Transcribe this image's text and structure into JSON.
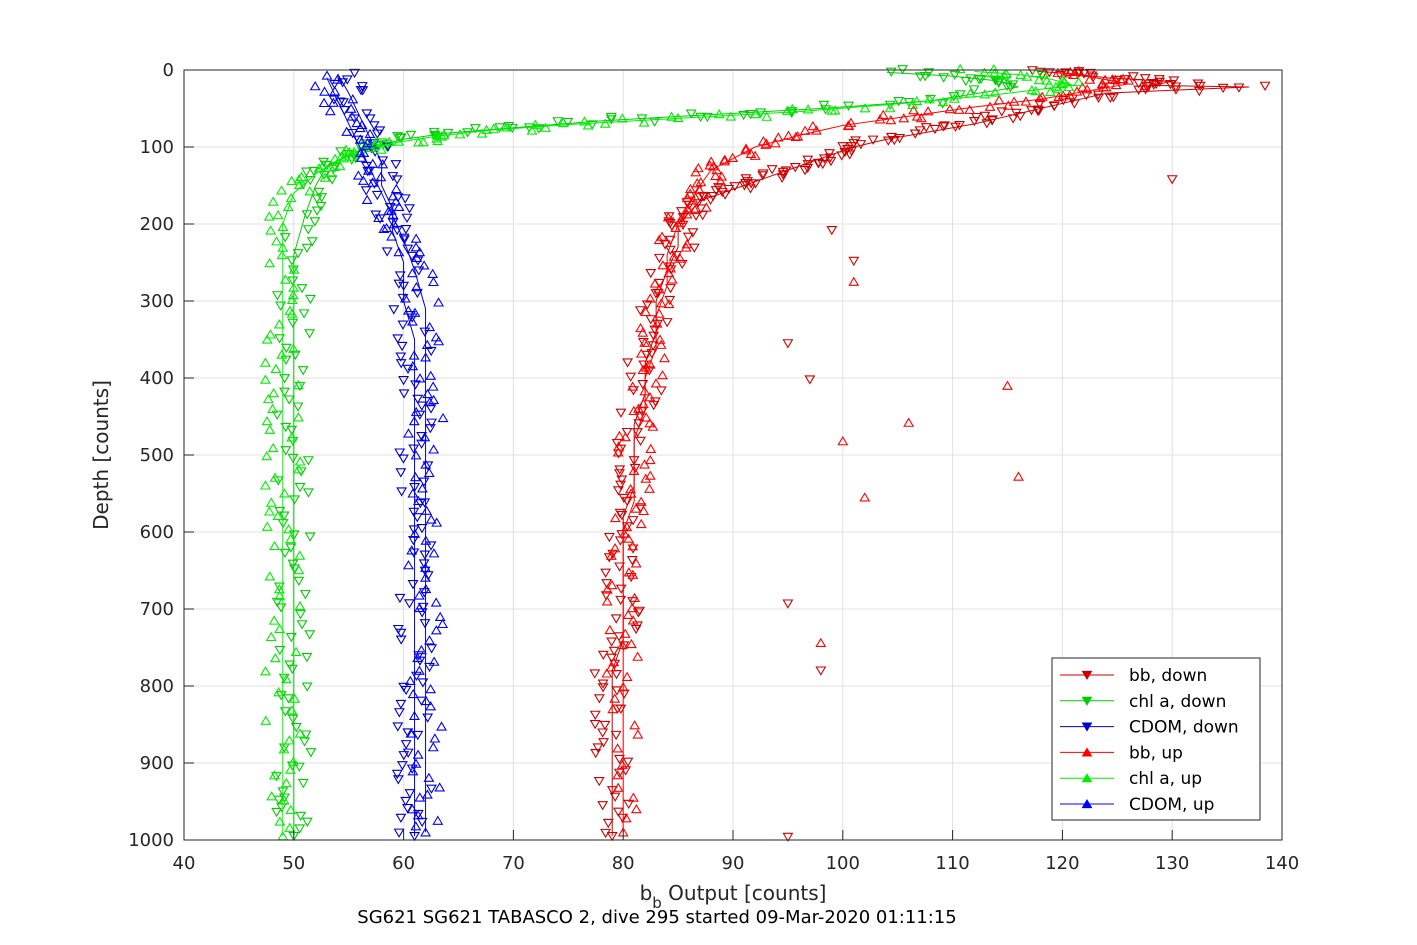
{
  "chart_data": {
    "type": "scatter",
    "xlabel_base": "b",
    "xlabel_sub": "b",
    "xlabel_rest": " Output [counts]",
    "ylabel": "Depth [counts]",
    "subtitle": "SG621 SG621 TABASCO 2, dive 295 started 09-Mar-2020 01:11:15",
    "xlim": [
      40,
      140
    ],
    "ylim": [
      0,
      1000
    ],
    "y_reversed": true,
    "grid": true,
    "legend_position": "bottom-right",
    "xticks": [
      "40",
      "50",
      "60",
      "70",
      "80",
      "90",
      "100",
      "110",
      "120",
      "130",
      "140"
    ],
    "yticks": [
      "0",
      "100",
      "200",
      "300",
      "400",
      "500",
      "600",
      "700",
      "800",
      "900",
      "1000"
    ],
    "series": [
      {
        "name": "bb, down",
        "color": "#cc0000",
        "marker": "down",
        "x": [
          118,
          121,
          124,
          130,
          128,
          137,
          124,
          121,
          118,
          115,
          112,
          108,
          104,
          101,
          99,
          97,
          95,
          93,
          91,
          89,
          87,
          86,
          85,
          85,
          84,
          83,
          83,
          82,
          82,
          81,
          81,
          81,
          80,
          80,
          80,
          80,
          80,
          79,
          79,
          79,
          79,
          79,
          79
        ],
        "y": [
          2,
          5,
          10,
          15,
          20,
          22,
          30,
          40,
          50,
          60,
          70,
          80,
          90,
          100,
          110,
          120,
          130,
          140,
          150,
          160,
          170,
          185,
          200,
          230,
          260,
          300,
          340,
          380,
          420,
          460,
          500,
          540,
          580,
          620,
          660,
          700,
          740,
          780,
          820,
          860,
          900,
          950,
          995
        ],
        "outliers_x": [
          130,
          99,
          101,
          95,
          97,
          95,
          98,
          95
        ],
        "outliers_y": [
          142,
          208,
          248,
          355,
          402,
          693,
          780,
          996
        ]
      },
      {
        "name": "chl a, down",
        "color": "#00cc00",
        "marker": "down",
        "x": [
          104,
          110,
          114,
          116,
          108,
          98,
          88,
          78,
          70,
          64,
          60,
          57,
          55,
          53,
          52,
          51,
          50,
          50,
          50,
          50,
          50,
          50,
          50,
          50,
          50,
          50,
          50,
          50,
          50,
          50
        ],
        "y": [
          3,
          8,
          14,
          22,
          40,
          50,
          58,
          66,
          75,
          82,
          90,
          100,
          110,
          125,
          150,
          190,
          240,
          300,
          360,
          420,
          480,
          540,
          600,
          660,
          720,
          780,
          840,
          900,
          950,
          995
        ]
      },
      {
        "name": "CDOM, down",
        "color": "#0000cc",
        "marker": "down",
        "x": [
          54,
          55,
          56,
          57,
          58,
          58,
          59,
          59,
          60,
          60,
          61,
          61,
          61,
          61,
          61,
          61,
          61,
          61,
          61,
          61,
          61,
          61,
          61,
          61
        ],
        "y": [
          5,
          30,
          60,
          90,
          120,
          150,
          180,
          210,
          250,
          300,
          350,
          400,
          450,
          500,
          550,
          600,
          650,
          700,
          750,
          800,
          850,
          900,
          950,
          995
        ]
      },
      {
        "name": "bb, up",
        "color": "#ff0000",
        "marker": "up",
        "x": [
          120,
          123,
          126,
          122,
          118,
          112,
          106,
          100,
          96,
          92,
          90,
          88,
          87,
          86,
          85,
          84,
          84,
          83,
          83,
          82,
          82,
          81,
          81,
          81,
          80,
          80,
          80,
          80,
          80,
          80,
          80
        ],
        "y": [
          4,
          10,
          18,
          28,
          38,
          48,
          60,
          72,
          85,
          100,
          115,
          130,
          150,
          175,
          200,
          240,
          280,
          320,
          360,
          400,
          440,
          480,
          520,
          560,
          600,
          650,
          700,
          750,
          800,
          900,
          990
        ],
        "outliers_x": [
          115,
          106,
          100,
          102,
          116,
          98,
          101
        ],
        "outliers_y": [
          410,
          458,
          482,
          555,
          528,
          744,
          275
        ]
      },
      {
        "name": "chl a, up",
        "color": "#00ee00",
        "marker": "up",
        "x": [
          112,
          116,
          119,
          121,
          114,
          105,
          96,
          86,
          76,
          68,
          63,
          59,
          56,
          54,
          52,
          50,
          49,
          49,
          49,
          49,
          49,
          49,
          49,
          49,
          49,
          49,
          49,
          49,
          49
        ],
        "y": [
          2,
          6,
          12,
          20,
          32,
          44,
          54,
          62,
          70,
          78,
          86,
          95,
          105,
          118,
          135,
          160,
          200,
          260,
          320,
          380,
          440,
          500,
          560,
          620,
          700,
          780,
          860,
          930,
          995
        ]
      },
      {
        "name": "CDOM, up",
        "color": "#0000ff",
        "marker": "up",
        "x": [
          53,
          54,
          55,
          56,
          57,
          58,
          59,
          60,
          61,
          62,
          62,
          62,
          62,
          62,
          62,
          62,
          62,
          62,
          62,
          62,
          62,
          62
        ],
        "y": [
          10,
          40,
          70,
          100,
          130,
          160,
          190,
          220,
          260,
          310,
          360,
          410,
          460,
          520,
          580,
          640,
          700,
          760,
          820,
          880,
          940,
          990
        ]
      }
    ],
    "legend_labels": [
      "bb, down",
      "chl a, down",
      "CDOM, down",
      "bb, up",
      "chl a, up",
      "CDOM, up"
    ]
  }
}
